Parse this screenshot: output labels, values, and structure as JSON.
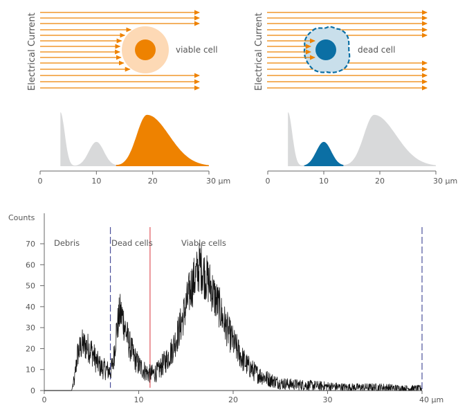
{
  "colors": {
    "orange": "#ee8200",
    "orange_light": "#fdd9b5",
    "blue": "#0b6fa4",
    "blue_light": "#c9dfeb",
    "gray": "#d8d9da",
    "axis": "#666666",
    "text": "#555555",
    "dashed_line": "#4a4f9a",
    "red_line": "#e0555a",
    "histogram": "#111111"
  },
  "panels": [
    {
      "id": "viable",
      "y_label": "Electrical Current",
      "cell_label": "viable cell",
      "highlight_range_um": [
        13.5,
        30
      ],
      "highlight_color": "orange",
      "axis_ticks": [
        "0",
        "10",
        "20",
        "30 µm"
      ]
    },
    {
      "id": "dead",
      "y_label": "Electrical Current",
      "cell_label": "dead cell",
      "highlight_range_um": [
        6.5,
        13.5
      ],
      "highlight_color": "blue",
      "axis_ticks": [
        "0",
        "10",
        "20",
        "30 µm"
      ]
    }
  ],
  "chart_data": [
    {
      "type": "area",
      "title": "Viable cell schematic size distribution",
      "xlabel": "µm",
      "xlim": [
        0,
        30
      ],
      "x_ticks": [
        0,
        10,
        20,
        30
      ],
      "x_tick_labels": [
        "0",
        "10",
        "20",
        "30 µm"
      ],
      "components": [
        {
          "name": "Debris",
          "peak_x": 3.7,
          "relative_height": 1.0
        },
        {
          "name": "Dead cells",
          "peak_x": 10,
          "relative_height": 0.45
        },
        {
          "name": "Viable cells",
          "peak_x": 19,
          "relative_height": 0.95
        }
      ],
      "highlight": {
        "name": "Viable cells",
        "range": [
          13.5,
          30
        ]
      }
    },
    {
      "type": "area",
      "title": "Dead cell schematic size distribution",
      "xlabel": "µm",
      "xlim": [
        0,
        30
      ],
      "x_ticks": [
        0,
        10,
        20,
        30
      ],
      "x_tick_labels": [
        "0",
        "10",
        "20",
        "30 µm"
      ],
      "components": [
        {
          "name": "Debris",
          "peak_x": 3.7,
          "relative_height": 1.0
        },
        {
          "name": "Dead cells",
          "peak_x": 10,
          "relative_height": 0.45
        },
        {
          "name": "Viable cells",
          "peak_x": 19,
          "relative_height": 0.95
        }
      ],
      "highlight": {
        "name": "Dead cells",
        "range": [
          6.5,
          13.5
        ]
      }
    },
    {
      "type": "line",
      "title": "",
      "xlabel": "µm",
      "ylabel": "Counts",
      "xlim": [
        0,
        40
      ],
      "ylim": [
        0,
        75
      ],
      "x_ticks": [
        0,
        10,
        20,
        30,
        40
      ],
      "x_tick_labels": [
        "0",
        "10",
        "20",
        "30",
        "40 µm"
      ],
      "y_ticks": [
        0,
        10,
        20,
        30,
        40,
        50,
        60,
        70
      ],
      "grid": false,
      "gates": [
        {
          "x": 7,
          "style": "dashed",
          "color": "dashed_line"
        },
        {
          "x": 11.2,
          "style": "solid",
          "color": "red_line"
        },
        {
          "x": 40,
          "style": "dashed",
          "color": "dashed_line"
        }
      ],
      "region_labels": [
        {
          "text": "Debris",
          "x": 1
        },
        {
          "text": "Dead cells",
          "x": 7.1
        },
        {
          "text": "Viable cells",
          "x": 14.5
        }
      ],
      "series": [
        {
          "name": "Counts",
          "x": [
            0,
            2.9,
            3.0,
            3.2,
            3.5,
            4.0,
            4.5,
            5.0,
            5.5,
            6.0,
            6.5,
            7.0,
            7.3,
            7.6,
            8.0,
            8.3,
            8.6,
            9.0,
            9.5,
            10.0,
            10.5,
            11.0,
            11.5,
            12.0,
            12.5,
            13.0,
            13.5,
            14.0,
            14.5,
            15.0,
            15.5,
            16.0,
            16.5,
            17.0,
            17.5,
            18.0,
            18.5,
            19.0,
            19.5,
            20.0,
            20.5,
            21.0,
            21.5,
            22.0,
            22.5,
            23.0,
            24.0,
            25.0,
            26.0,
            28.0,
            30.0,
            32.0,
            34.0,
            36.0,
            38.0,
            40.0
          ],
          "values": [
            0,
            0,
            2,
            5,
            17,
            22,
            21,
            19,
            14,
            11,
            10,
            9,
            13,
            27,
            37,
            35,
            29,
            22,
            16,
            12,
            10,
            8,
            8,
            9,
            12,
            15,
            19,
            25,
            32,
            40,
            49,
            54,
            60,
            55,
            51,
            45,
            40,
            33,
            28,
            23,
            19,
            15,
            12,
            10,
            8,
            7,
            5,
            3.5,
            3,
            2.5,
            2,
            1.5,
            1.5,
            1.5,
            1,
            1
          ]
        }
      ]
    }
  ]
}
